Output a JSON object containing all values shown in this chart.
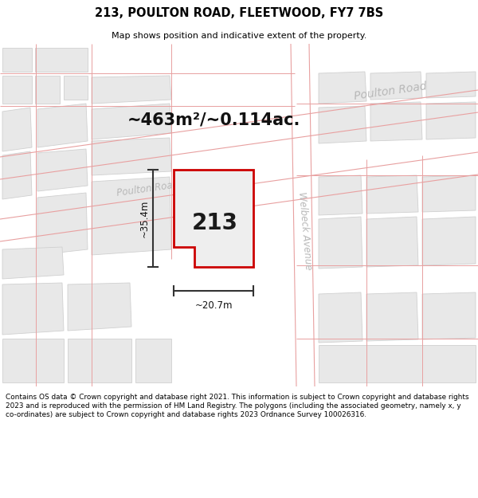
{
  "title": "213, POULTON ROAD, FLEETWOOD, FY7 7BS",
  "subtitle": "Map shows position and indicative extent of the property.",
  "area_text": "~463m²/~0.114ac.",
  "property_number": "213",
  "dim_width": "~20.7m",
  "dim_height": "~35.4m",
  "street_poulton_upper": "Poulton Road",
  "street_poulton_lower": "Poulton Road",
  "street_welbeck": "Welbeck Avenue",
  "footer": "Contains OS data © Crown copyright and database right 2021. This information is subject to Crown copyright and database rights 2023 and is reproduced with the permission of HM Land Registry. The polygons (including the associated geometry, namely x, y co-ordinates) are subject to Crown copyright and database rights 2023 Ordnance Survey 100026316.",
  "map_bg": "#f0f0f0",
  "building_fill": "#e8e8e8",
  "building_edge": "#d0d0d0",
  "road_pink": "#e8a0a0",
  "prop_fill": "#eeeeee",
  "prop_edge": "#cc0000",
  "dim_color": "#333333",
  "street_color": "#b8b8b8",
  "white": "#ffffff"
}
